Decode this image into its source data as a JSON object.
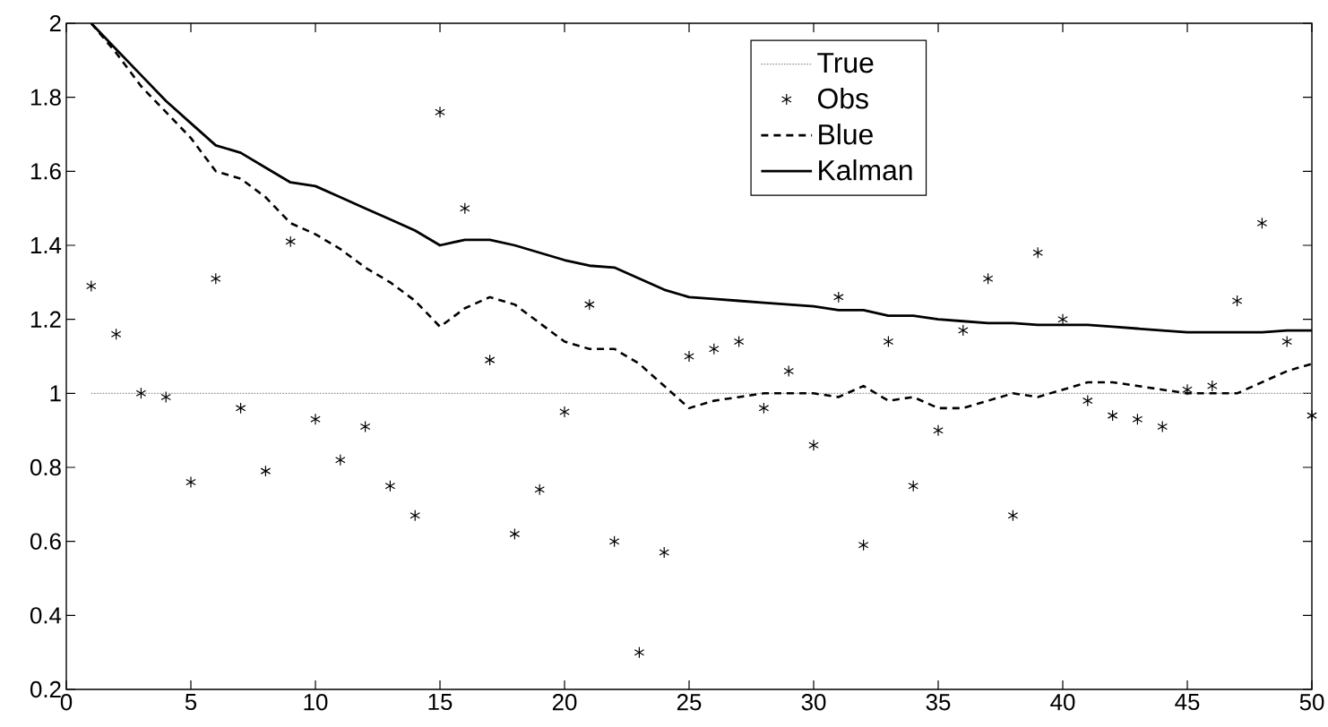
{
  "chart_data": {
    "type": "line",
    "xlim": [
      0,
      50
    ],
    "ylim": [
      0.2,
      2
    ],
    "xticks": [
      0,
      5,
      10,
      15,
      20,
      25,
      30,
      35,
      40,
      45,
      50
    ],
    "yticks": [
      0.2,
      0.4,
      0.6,
      0.8,
      1,
      1.2,
      1.4,
      1.6,
      1.8,
      2
    ],
    "x": [
      1,
      2,
      3,
      4,
      5,
      6,
      7,
      8,
      9,
      10,
      11,
      12,
      13,
      14,
      15,
      16,
      17,
      18,
      19,
      20,
      21,
      22,
      23,
      24,
      25,
      26,
      27,
      28,
      29,
      30,
      31,
      32,
      33,
      34,
      35,
      36,
      37,
      38,
      39,
      40,
      41,
      42,
      43,
      44,
      45,
      46,
      47,
      48,
      49,
      50
    ],
    "legend": "top",
    "grid": false,
    "series": [
      {
        "name": "True",
        "line_style": "dotted",
        "color": "#909090",
        "values": [
          1,
          1,
          1,
          1,
          1,
          1,
          1,
          1,
          1,
          1,
          1,
          1,
          1,
          1,
          1,
          1,
          1,
          1,
          1,
          1,
          1,
          1,
          1,
          1,
          1,
          1,
          1,
          1,
          1,
          1,
          1,
          1,
          1,
          1,
          1,
          1,
          1,
          1,
          1,
          1,
          1,
          1,
          1,
          1,
          1,
          1,
          1,
          1,
          1,
          1
        ]
      },
      {
        "name": "Obs",
        "type": "scatter",
        "marker": "cross",
        "color": "#000000",
        "values": [
          1.29,
          1.16,
          1.0,
          0.99,
          0.76,
          1.31,
          0.96,
          0.79,
          1.41,
          0.93,
          0.82,
          0.91,
          0.75,
          0.67,
          1.76,
          1.5,
          1.09,
          0.62,
          0.74,
          0.95,
          1.24,
          0.6,
          0.3,
          0.57,
          1.1,
          1.12,
          1.14,
          0.96,
          1.06,
          0.86,
          1.26,
          0.59,
          1.14,
          0.75,
          0.9,
          1.17,
          1.31,
          0.67,
          1.38,
          1.2,
          0.98,
          0.94,
          0.93,
          0.91,
          1.01,
          1.02,
          1.25,
          1.46,
          1.14,
          0.94
        ]
      },
      {
        "name": "Blue",
        "line_style": "dashed",
        "color": "#000000",
        "values": [
          2.0,
          1.92,
          1.83,
          1.76,
          1.69,
          1.6,
          1.58,
          1.53,
          1.46,
          1.43,
          1.39,
          1.34,
          1.3,
          1.25,
          1.18,
          1.23,
          1.26,
          1.24,
          1.19,
          1.14,
          1.12,
          1.12,
          1.08,
          1.02,
          0.96,
          0.98,
          0.99,
          1.0,
          1.0,
          1.0,
          0.99,
          1.02,
          0.98,
          0.99,
          0.96,
          0.96,
          0.98,
          1.0,
          0.99,
          1.01,
          1.03,
          1.03,
          1.02,
          1.01,
          1.0,
          1.0,
          1.0,
          1.03,
          1.06,
          1.08
        ]
      },
      {
        "name": "Kalman",
        "line_style": "solid",
        "color": "#000000",
        "values": [
          2.0,
          1.93,
          1.86,
          1.79,
          1.73,
          1.67,
          1.65,
          1.61,
          1.57,
          1.56,
          1.53,
          1.5,
          1.47,
          1.44,
          1.4,
          1.415,
          1.415,
          1.4,
          1.38,
          1.36,
          1.345,
          1.34,
          1.31,
          1.28,
          1.26,
          1.255,
          1.25,
          1.245,
          1.24,
          1.235,
          1.225,
          1.225,
          1.21,
          1.21,
          1.2,
          1.195,
          1.19,
          1.19,
          1.185,
          1.185,
          1.185,
          1.18,
          1.175,
          1.17,
          1.165,
          1.165,
          1.165,
          1.165,
          1.17,
          1.17
        ]
      }
    ]
  }
}
